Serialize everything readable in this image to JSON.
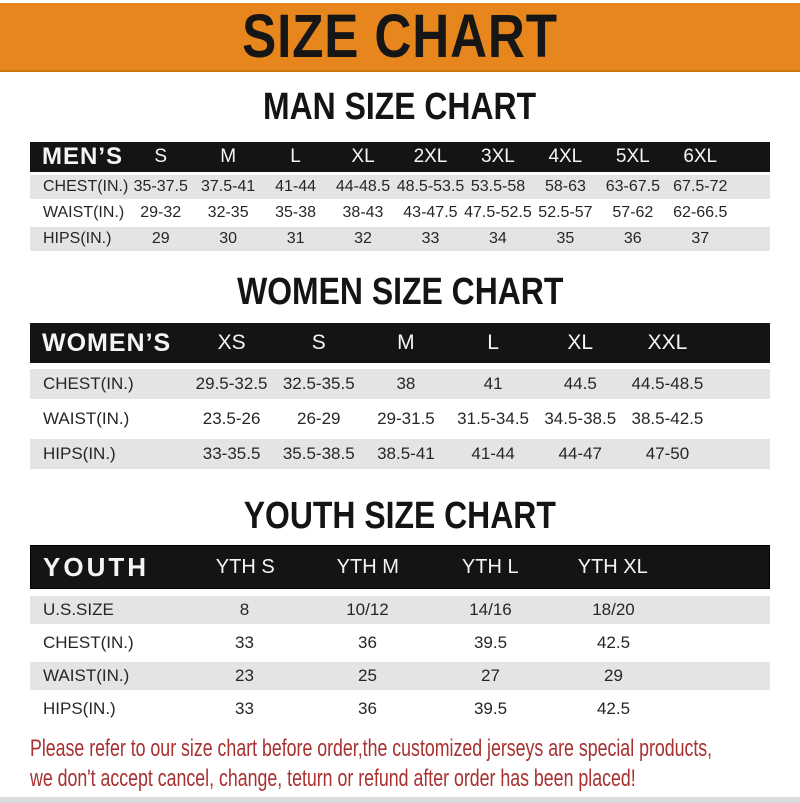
{
  "banner": {
    "title": "SIZE CHART"
  },
  "sections": [
    {
      "title": "MAN SIZE CHART",
      "header_label": "MEN’S",
      "columns": [
        "S",
        "M",
        "L",
        "XL",
        "2XL",
        "3XL",
        "4XL",
        "5XL",
        "6XL"
      ],
      "rows": [
        {
          "label": "CHEST(IN.)",
          "values": [
            "35-37.5",
            "37.5-41",
            "41-44",
            "44-48.5",
            "48.5-53.5",
            "53.5-58",
            "58-63",
            "63-67.5",
            "67.5-72"
          ]
        },
        {
          "label": "WAIST(IN.)",
          "values": [
            "29-32",
            "32-35",
            "35-38",
            "38-43",
            "43-47.5",
            "47.5-52.5",
            "52.5-57",
            "57-62",
            "62-66.5"
          ]
        },
        {
          "label": "HIPS(IN.)",
          "values": [
            "29",
            "30",
            "31",
            "32",
            "33",
            "34",
            "35",
            "36",
            "37"
          ]
        }
      ]
    },
    {
      "title": "WOMEN SIZE CHART",
      "header_label": "WOMEN’S",
      "columns": [
        "XS",
        "S",
        "M",
        "L",
        "XL",
        "XXL"
      ],
      "rows": [
        {
          "label": "CHEST(IN.)",
          "values": [
            "29.5-32.5",
            "32.5-35.5",
            "38",
            "41",
            "44.5",
            "44.5-48.5"
          ]
        },
        {
          "label": "WAIST(IN.)",
          "values": [
            "23.5-26",
            "26-29",
            "29-31.5",
            "31.5-34.5",
            "34.5-38.5",
            "38.5-42.5"
          ]
        },
        {
          "label": "HIPS(IN.)",
          "values": [
            "33-35.5",
            "35.5-38.5",
            "38.5-41",
            "41-44",
            "44-47",
            "47-50"
          ]
        }
      ]
    },
    {
      "title": "YOUTH SIZE CHART",
      "header_label": "YOUTH",
      "columns": [
        "YTH S",
        "YTH M",
        "YTH L",
        "YTH XL"
      ],
      "rows": [
        {
          "label": "U.S.SIZE",
          "values": [
            "8",
            "10/12",
            "14/16",
            "18/20"
          ]
        },
        {
          "label": "CHEST(IN.)",
          "values": [
            "33",
            "36",
            "39.5",
            "42.5"
          ]
        },
        {
          "label": "WAIST(IN.)",
          "values": [
            "23",
            "25",
            "27",
            "29"
          ]
        },
        {
          "label": "HIPS(IN.)",
          "values": [
            "33",
            "36",
            "39.5",
            "42.5"
          ]
        }
      ]
    }
  ],
  "footer": {
    "line1": "Please refer to our size chart before order,the customized jerseys are special products,",
    "line2": "we don't accept cancel, change, teturn or refund after order has been placed!"
  },
  "colors": {
    "banner_background": "#E8861E",
    "header_bar_background": "#141414",
    "stripe_row_background": "#E4E4E4",
    "title_text": "#141414",
    "notice_text": "#A93131"
  }
}
